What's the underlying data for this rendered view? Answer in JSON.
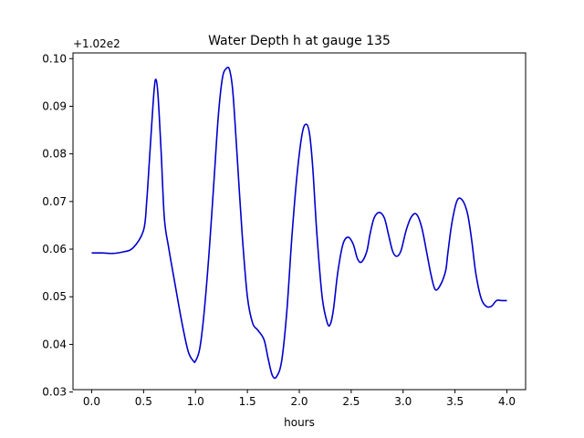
{
  "chart_data": {
    "type": "line",
    "title": "Water Depth h at gauge 135",
    "xlabel": "hours",
    "ylabel": "",
    "offset_text": "+1.02e2",
    "xlim": [
      -0.18,
      4.18
    ],
    "ylim": [
      0.0305,
      0.1012
    ],
    "xticks": [
      0.0,
      0.5,
      1.0,
      1.5,
      2.0,
      2.5,
      3.0,
      3.5,
      4.0
    ],
    "xtick_labels": [
      "0.0",
      "0.5",
      "1.0",
      "1.5",
      "2.0",
      "2.5",
      "3.0",
      "3.5",
      "4.0"
    ],
    "yticks": [
      0.03,
      0.04,
      0.05,
      0.06,
      0.07,
      0.08,
      0.09,
      0.1
    ],
    "ytick_labels": [
      "0.03",
      "0.04",
      "0.05",
      "0.06",
      "0.07",
      "0.08",
      "0.09",
      "0.10"
    ],
    "grid": false,
    "series": [
      {
        "color": "#0000cc",
        "x": [
          0.0,
          0.1,
          0.2,
          0.3,
          0.4,
          0.5,
          0.53,
          0.56,
          0.6,
          0.62,
          0.64,
          0.67,
          0.7,
          0.74,
          0.8,
          0.87,
          0.93,
          0.98,
          1.0,
          1.04,
          1.08,
          1.13,
          1.18,
          1.22,
          1.26,
          1.3,
          1.33,
          1.36,
          1.4,
          1.45,
          1.5,
          1.55,
          1.6,
          1.66,
          1.7,
          1.74,
          1.78,
          1.83,
          1.88,
          1.93,
          1.98,
          2.03,
          2.07,
          2.1,
          2.13,
          2.17,
          2.22,
          2.27,
          2.3,
          2.33,
          2.37,
          2.42,
          2.47,
          2.52,
          2.56,
          2.6,
          2.65,
          2.68,
          2.72,
          2.77,
          2.82,
          2.86,
          2.9,
          2.94,
          2.98,
          3.03,
          3.08,
          3.13,
          3.18,
          3.23,
          3.27,
          3.31,
          3.36,
          3.41,
          3.43,
          3.47,
          3.52,
          3.57,
          3.62,
          3.66,
          3.7,
          3.75,
          3.8,
          3.85,
          3.9,
          3.95,
          4.0
        ],
        "y": [
          0.0592,
          0.0592,
          0.0591,
          0.0594,
          0.0603,
          0.064,
          0.07,
          0.08,
          0.093,
          0.0956,
          0.092,
          0.08,
          0.0665,
          0.0605,
          0.053,
          0.0445,
          0.0385,
          0.0365,
          0.0365,
          0.039,
          0.046,
          0.059,
          0.075,
          0.088,
          0.096,
          0.098,
          0.0975,
          0.093,
          0.08,
          0.063,
          0.05,
          0.0445,
          0.043,
          0.041,
          0.037,
          0.0335,
          0.0332,
          0.0365,
          0.047,
          0.063,
          0.076,
          0.0845,
          0.0862,
          0.084,
          0.077,
          0.063,
          0.05,
          0.0445,
          0.0443,
          0.0475,
          0.055,
          0.061,
          0.0625,
          0.061,
          0.058,
          0.0573,
          0.0595,
          0.063,
          0.0665,
          0.0677,
          0.0665,
          0.063,
          0.0595,
          0.0585,
          0.0597,
          0.064,
          0.0668,
          0.0673,
          0.0645,
          0.059,
          0.0545,
          0.0515,
          0.0525,
          0.0555,
          0.059,
          0.0655,
          0.0702,
          0.0703,
          0.0675,
          0.062,
          0.055,
          0.0498,
          0.048,
          0.048,
          0.0492,
          0.0492,
          0.0492
        ]
      }
    ]
  }
}
